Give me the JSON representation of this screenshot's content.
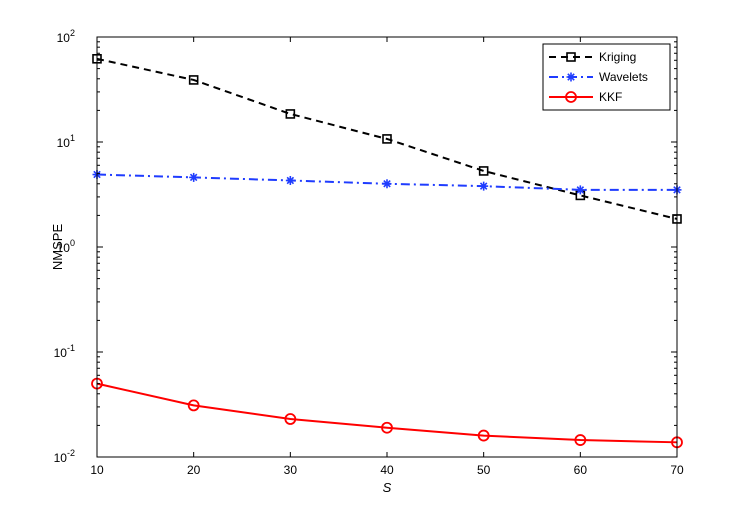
{
  "chart_data": {
    "type": "line",
    "x": [
      10,
      20,
      30,
      40,
      50,
      60,
      70
    ],
    "xlabel": "S",
    "ylabel": "NMSPE",
    "xlim": [
      10,
      70
    ],
    "ylim": [
      0.01,
      100
    ],
    "yscale": "log",
    "xticks": [
      "10",
      "20",
      "30",
      "40",
      "50",
      "60",
      "70"
    ],
    "yticks": [
      {
        "base": "10",
        "exp": "-2"
      },
      {
        "base": "10",
        "exp": "-1"
      },
      {
        "base": "10",
        "exp": "0"
      },
      {
        "base": "10",
        "exp": "1"
      },
      {
        "base": "10",
        "exp": "2"
      }
    ],
    "grid": false,
    "legend_position": "top-right",
    "series": [
      {
        "name": "Kriging",
        "values": [
          62,
          39,
          18.5,
          10.7,
          5.3,
          3.1,
          1.85
        ],
        "color": "#000000",
        "dash": "dashed",
        "marker": "square"
      },
      {
        "name": "Wavelets",
        "values": [
          4.9,
          4.6,
          4.3,
          4.0,
          3.8,
          3.5,
          3.5
        ],
        "color": "#1f3cff",
        "dash": "dashdot",
        "marker": "asterisk"
      },
      {
        "name": "KKF",
        "values": [
          0.05,
          0.031,
          0.023,
          0.019,
          0.016,
          0.0145,
          0.0138
        ],
        "color": "#ff0000",
        "dash": "solid",
        "marker": "circle"
      }
    ]
  }
}
